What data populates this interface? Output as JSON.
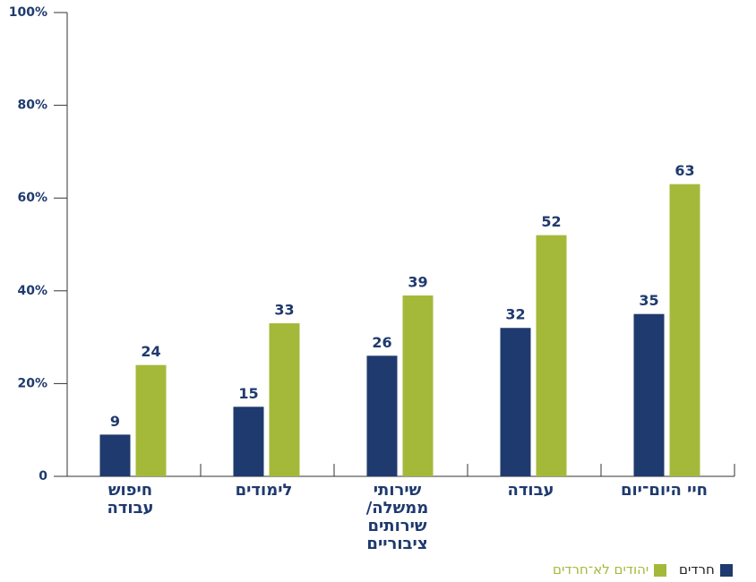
{
  "chart_data": {
    "type": "bar",
    "categories": [
      "חיפוש עבודה",
      "לימודים",
      "שירותי ממשלה/ שירותים ציבוריים",
      "עבודה",
      "חיי היום־יום"
    ],
    "series": [
      {
        "name": "חרדים",
        "color": "#1f3a6e",
        "values": [
          9,
          15,
          26,
          32,
          35
        ]
      },
      {
        "name": "יהודים לא־חרדים",
        "color": "#a4b93a",
        "values": [
          24,
          33,
          39,
          52,
          63
        ]
      }
    ],
    "ylim": [
      0,
      100
    ],
    "yticks": [
      0,
      {
        "value": 20,
        "label": "20%"
      },
      {
        "value": 40,
        "label": "40%"
      },
      {
        "value": 60,
        "label": "60%"
      },
      {
        "value": 80,
        "label": "80%"
      },
      {
        "value": 100,
        "label": "100%"
      }
    ],
    "legend": "bottom-right"
  }
}
